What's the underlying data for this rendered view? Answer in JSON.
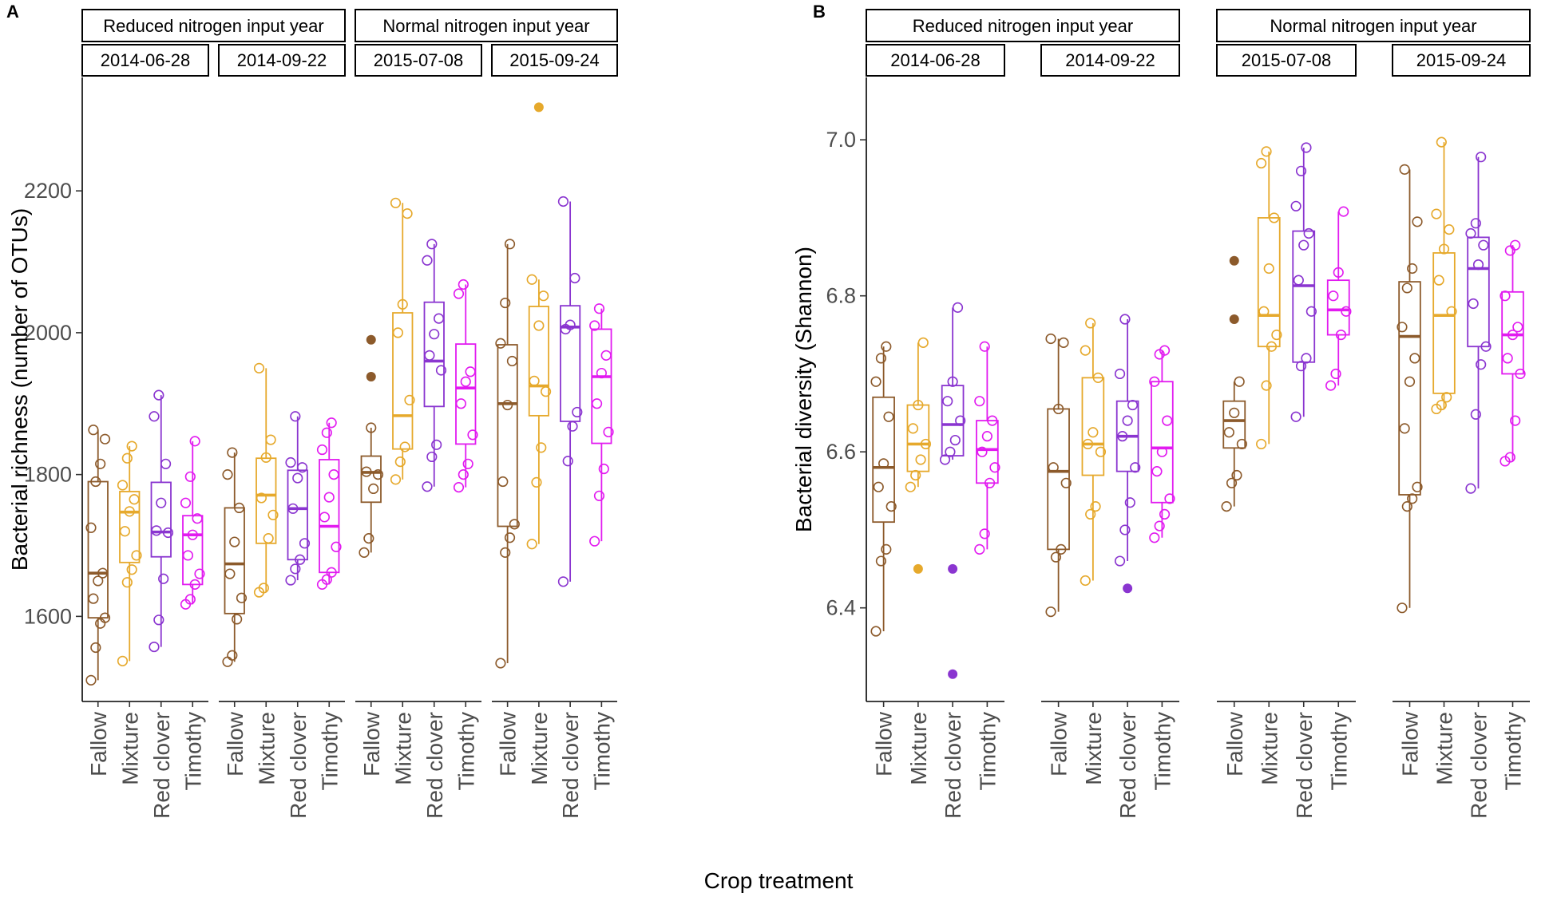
{
  "x_axis_title": "Crop treatment",
  "legend": {
    "Fallow": "#8c5a2b",
    "Mixture": "#e6a92c",
    "Red clover": "#8a35d0",
    "Timothy": "#e21bf0"
  },
  "chart_data": [
    {
      "type": "boxplot",
      "panel_label": "A",
      "ylabel": "Bacterial richness (number of OTUs)",
      "ylim": [
        1480,
        2360
      ],
      "yticks": [
        1600,
        1800,
        2000,
        2200
      ],
      "year_strips": [
        "Reduced nitrogen input year",
        "Normal nitrogen input year"
      ],
      "date_strips": [
        "2014-06-28",
        "2014-09-22",
        "2015-07-08",
        "2015-09-24"
      ],
      "categories": [
        "Fallow",
        "Mixture",
        "Red clover",
        "Timothy"
      ],
      "groups": [
        {
          "date": "2014-06-28",
          "boxes": [
            {
              "cat": "Fallow",
              "min": 1510,
              "q1": 1598,
              "median": 1661,
              "q3": 1790,
              "max": 1863,
              "outliers": [],
              "points": [
                1510,
                1556,
                1590,
                1598,
                1625,
                1650,
                1661,
                1725,
                1790,
                1815,
                1850,
                1863
              ]
            },
            {
              "cat": "Mixture",
              "min": 1537,
              "q1": 1676,
              "median": 1747,
              "q3": 1776,
              "max": 1840,
              "outliers": [],
              "points": [
                1537,
                1648,
                1666,
                1686,
                1720,
                1748,
                1765,
                1785,
                1823,
                1840
              ]
            },
            {
              "cat": "Red clover",
              "min": 1557,
              "q1": 1684,
              "median": 1719,
              "q3": 1789,
              "max": 1912,
              "outliers": [],
              "points": [
                1557,
                1595,
                1653,
                1718,
                1721,
                1760,
                1815,
                1882,
                1912
              ]
            },
            {
              "cat": "Timothy",
              "min": 1617,
              "q1": 1645,
              "median": 1715,
              "q3": 1742,
              "max": 1847,
              "outliers": [],
              "points": [
                1617,
                1624,
                1645,
                1660,
                1686,
                1715,
                1738,
                1760,
                1797,
                1847
              ]
            }
          ]
        },
        {
          "date": "2014-09-22",
          "boxes": [
            {
              "cat": "Fallow",
              "min": 1536,
              "q1": 1604,
              "median": 1674,
              "q3": 1753,
              "max": 1831,
              "outliers": [],
              "points": [
                1536,
                1545,
                1596,
                1626,
                1660,
                1705,
                1753,
                1800,
                1831
              ]
            },
            {
              "cat": "Mixture",
              "min": 1634,
              "q1": 1703,
              "median": 1771,
              "q3": 1823,
              "max": 1950,
              "outliers": [],
              "points": [
                1634,
                1640,
                1710,
                1743,
                1767,
                1824,
                1849,
                1950
              ]
            },
            {
              "cat": "Red clover",
              "min": 1651,
              "q1": 1680,
              "median": 1752,
              "q3": 1806,
              "max": 1882,
              "outliers": [],
              "points": [
                1651,
                1667,
                1680,
                1703,
                1752,
                1795,
                1810,
                1817,
                1882
              ]
            },
            {
              "cat": "Timothy",
              "min": 1645,
              "q1": 1662,
              "median": 1727,
              "q3": 1821,
              "max": 1873,
              "outliers": [],
              "points": [
                1645,
                1652,
                1662,
                1698,
                1740,
                1768,
                1800,
                1835,
                1859,
                1873
              ]
            }
          ]
        },
        {
          "date": "2015-07-08",
          "boxes": [
            {
              "cat": "Fallow",
              "min": 1690,
              "q1": 1761,
              "median": 1803,
              "q3": 1826,
              "max": 1866,
              "outliers": [
                1938,
                1990
              ],
              "points": [
                1690,
                1710,
                1780,
                1800,
                1804,
                1866
              ]
            },
            {
              "cat": "Mixture",
              "min": 1793,
              "q1": 1836,
              "median": 1883,
              "q3": 2028,
              "max": 2183,
              "outliers": [],
              "points": [
                1793,
                1818,
                1839,
                1905,
                2000,
                2040,
                2168,
                2183
              ]
            },
            {
              "cat": "Red clover",
              "min": 1783,
              "q1": 1896,
              "median": 1960,
              "q3": 2043,
              "max": 2125,
              "outliers": [],
              "points": [
                1783,
                1825,
                1842,
                1947,
                1968,
                1998,
                2020,
                2102,
                2125
              ]
            },
            {
              "cat": "Timothy",
              "min": 1782,
              "q1": 1843,
              "median": 1922,
              "q3": 1984,
              "max": 2068,
              "outliers": [],
              "points": [
                1782,
                1800,
                1815,
                1856,
                1900,
                1931,
                1945,
                2055,
                2068
              ]
            }
          ]
        },
        {
          "date": "2015-09-24",
          "boxes": [
            {
              "cat": "Fallow",
              "min": 1534,
              "q1": 1727,
              "median": 1900,
              "q3": 1983,
              "max": 2125,
              "outliers": [],
              "points": [
                1534,
                1690,
                1711,
                1730,
                1790,
                1898,
                1960,
                1985,
                2042,
                2125
              ]
            },
            {
              "cat": "Mixture",
              "min": 1702,
              "q1": 1883,
              "median": 1925,
              "q3": 2037,
              "max": 2075,
              "outliers": [
                2318
              ],
              "points": [
                1702,
                1789,
                1838,
                1917,
                1932,
                2010,
                2052,
                2075
              ]
            },
            {
              "cat": "Red clover",
              "min": 1649,
              "q1": 1875,
              "median": 2008,
              "q3": 2038,
              "max": 2185,
              "outliers": [],
              "points": [
                1649,
                1819,
                1868,
                1888,
                2005,
                2011,
                2077,
                2185
              ]
            },
            {
              "cat": "Timothy",
              "min": 1706,
              "q1": 1844,
              "median": 1938,
              "q3": 2005,
              "max": 2034,
              "outliers": [],
              "points": [
                1706,
                1770,
                1808,
                1860,
                1900,
                1943,
                1968,
                2010,
                2034
              ]
            }
          ]
        }
      ]
    },
    {
      "type": "boxplot",
      "panel_label": "B",
      "ylabel": "Bacterial diversity (Shannon)",
      "ylim": [
        6.28,
        7.08
      ],
      "yticks": [
        6.4,
        6.6,
        6.8,
        7.0
      ],
      "year_strips": [
        "Reduced nitrogen input year",
        "Normal nitrogen input year"
      ],
      "date_strips": [
        "2014-06-28",
        "2014-09-22",
        "2015-07-08",
        "2015-09-24"
      ],
      "categories": [
        "Fallow",
        "Mixture",
        "Red clover",
        "Timothy"
      ],
      "groups": [
        {
          "date": "2014-06-28",
          "boxes": [
            {
              "cat": "Fallow",
              "min": 6.37,
              "q1": 6.51,
              "median": 6.58,
              "q3": 6.67,
              "max": 6.735,
              "outliers": [],
              "points": [
                6.37,
                6.46,
                6.475,
                6.53,
                6.555,
                6.585,
                6.645,
                6.69,
                6.72,
                6.735
              ]
            },
            {
              "cat": "Mixture",
              "min": 6.555,
              "q1": 6.575,
              "median": 6.61,
              "q3": 6.66,
              "max": 6.74,
              "outliers": [
                6.45
              ],
              "points": [
                6.555,
                6.57,
                6.59,
                6.61,
                6.63,
                6.66,
                6.74
              ]
            },
            {
              "cat": "Red clover",
              "min": 6.59,
              "q1": 6.595,
              "median": 6.635,
              "q3": 6.685,
              "max": 6.785,
              "outliers": [
                6.45,
                6.315
              ],
              "points": [
                6.59,
                6.6,
                6.615,
                6.64,
                6.665,
                6.69,
                6.785
              ]
            },
            {
              "cat": "Timothy",
              "min": 6.475,
              "q1": 6.56,
              "median": 6.603,
              "q3": 6.64,
              "max": 6.735,
              "outliers": [],
              "points": [
                6.475,
                6.495,
                6.56,
                6.58,
                6.6,
                6.62,
                6.64,
                6.665,
                6.735
              ]
            }
          ]
        },
        {
          "date": "2014-09-22",
          "boxes": [
            {
              "cat": "Fallow",
              "min": 6.395,
              "q1": 6.475,
              "median": 6.575,
              "q3": 6.655,
              "max": 6.745,
              "outliers": [],
              "points": [
                6.395,
                6.465,
                6.475,
                6.56,
                6.58,
                6.655,
                6.74,
                6.745
              ]
            },
            {
              "cat": "Mixture",
              "min": 6.435,
              "q1": 6.57,
              "median": 6.61,
              "q3": 6.695,
              "max": 6.765,
              "outliers": [],
              "points": [
                6.435,
                6.52,
                6.53,
                6.6,
                6.61,
                6.625,
                6.695,
                6.73,
                6.765
              ]
            },
            {
              "cat": "Red clover",
              "min": 6.46,
              "q1": 6.575,
              "median": 6.62,
              "q3": 6.665,
              "max": 6.77,
              "outliers": [
                6.425
              ],
              "points": [
                6.46,
                6.5,
                6.535,
                6.58,
                6.62,
                6.64,
                6.66,
                6.7,
                6.77
              ]
            },
            {
              "cat": "Timothy",
              "min": 6.49,
              "q1": 6.535,
              "median": 6.605,
              "q3": 6.69,
              "max": 6.73,
              "outliers": [],
              "points": [
                6.49,
                6.505,
                6.52,
                6.54,
                6.575,
                6.6,
                6.64,
                6.69,
                6.725,
                6.73
              ]
            }
          ]
        },
        {
          "date": "2015-07-08",
          "boxes": [
            {
              "cat": "Fallow",
              "min": 6.53,
              "q1": 6.605,
              "median": 6.64,
              "q3": 6.665,
              "max": 6.69,
              "outliers": [
                6.845,
                6.77
              ],
              "points": [
                6.53,
                6.56,
                6.57,
                6.61,
                6.625,
                6.65,
                6.69
              ]
            },
            {
              "cat": "Mixture",
              "min": 6.61,
              "q1": 6.735,
              "median": 6.775,
              "q3": 6.9,
              "max": 6.985,
              "outliers": [],
              "points": [
                6.61,
                6.685,
                6.735,
                6.75,
                6.78,
                6.835,
                6.9,
                6.97,
                6.985
              ]
            },
            {
              "cat": "Red clover",
              "min": 6.645,
              "q1": 6.715,
              "median": 6.813,
              "q3": 6.883,
              "max": 6.99,
              "outliers": [],
              "points": [
                6.645,
                6.71,
                6.72,
                6.78,
                6.82,
                6.865,
                6.88,
                6.915,
                6.96,
                6.99
              ]
            },
            {
              "cat": "Timothy",
              "min": 6.685,
              "q1": 6.75,
              "median": 6.782,
              "q3": 6.82,
              "max": 6.908,
              "outliers": [],
              "points": [
                6.685,
                6.7,
                6.75,
                6.78,
                6.8,
                6.83,
                6.908
              ]
            }
          ]
        },
        {
          "date": "2015-09-24",
          "boxes": [
            {
              "cat": "Fallow",
              "min": 6.4,
              "q1": 6.545,
              "median": 6.748,
              "q3": 6.818,
              "max": 6.962,
              "outliers": [],
              "points": [
                6.4,
                6.53,
                6.54,
                6.555,
                6.63,
                6.69,
                6.72,
                6.76,
                6.81,
                6.835,
                6.895,
                6.962
              ]
            },
            {
              "cat": "Mixture",
              "min": 6.655,
              "q1": 6.675,
              "median": 6.775,
              "q3": 6.855,
              "max": 6.997,
              "outliers": [],
              "points": [
                6.655,
                6.66,
                6.67,
                6.78,
                6.82,
                6.86,
                6.885,
                6.905,
                6.997
              ]
            },
            {
              "cat": "Red clover",
              "min": 6.553,
              "q1": 6.735,
              "median": 6.835,
              "q3": 6.875,
              "max": 6.978,
              "outliers": [],
              "points": [
                6.553,
                6.648,
                6.712,
                6.735,
                6.79,
                6.84,
                6.865,
                6.88,
                6.893,
                6.978
              ]
            },
            {
              "cat": "Timothy",
              "min": 6.588,
              "q1": 6.7,
              "median": 6.75,
              "q3": 6.805,
              "max": 6.865,
              "outliers": [],
              "points": [
                6.588,
                6.593,
                6.64,
                6.7,
                6.72,
                6.75,
                6.76,
                6.8,
                6.858,
                6.865
              ]
            }
          ]
        }
      ]
    }
  ]
}
